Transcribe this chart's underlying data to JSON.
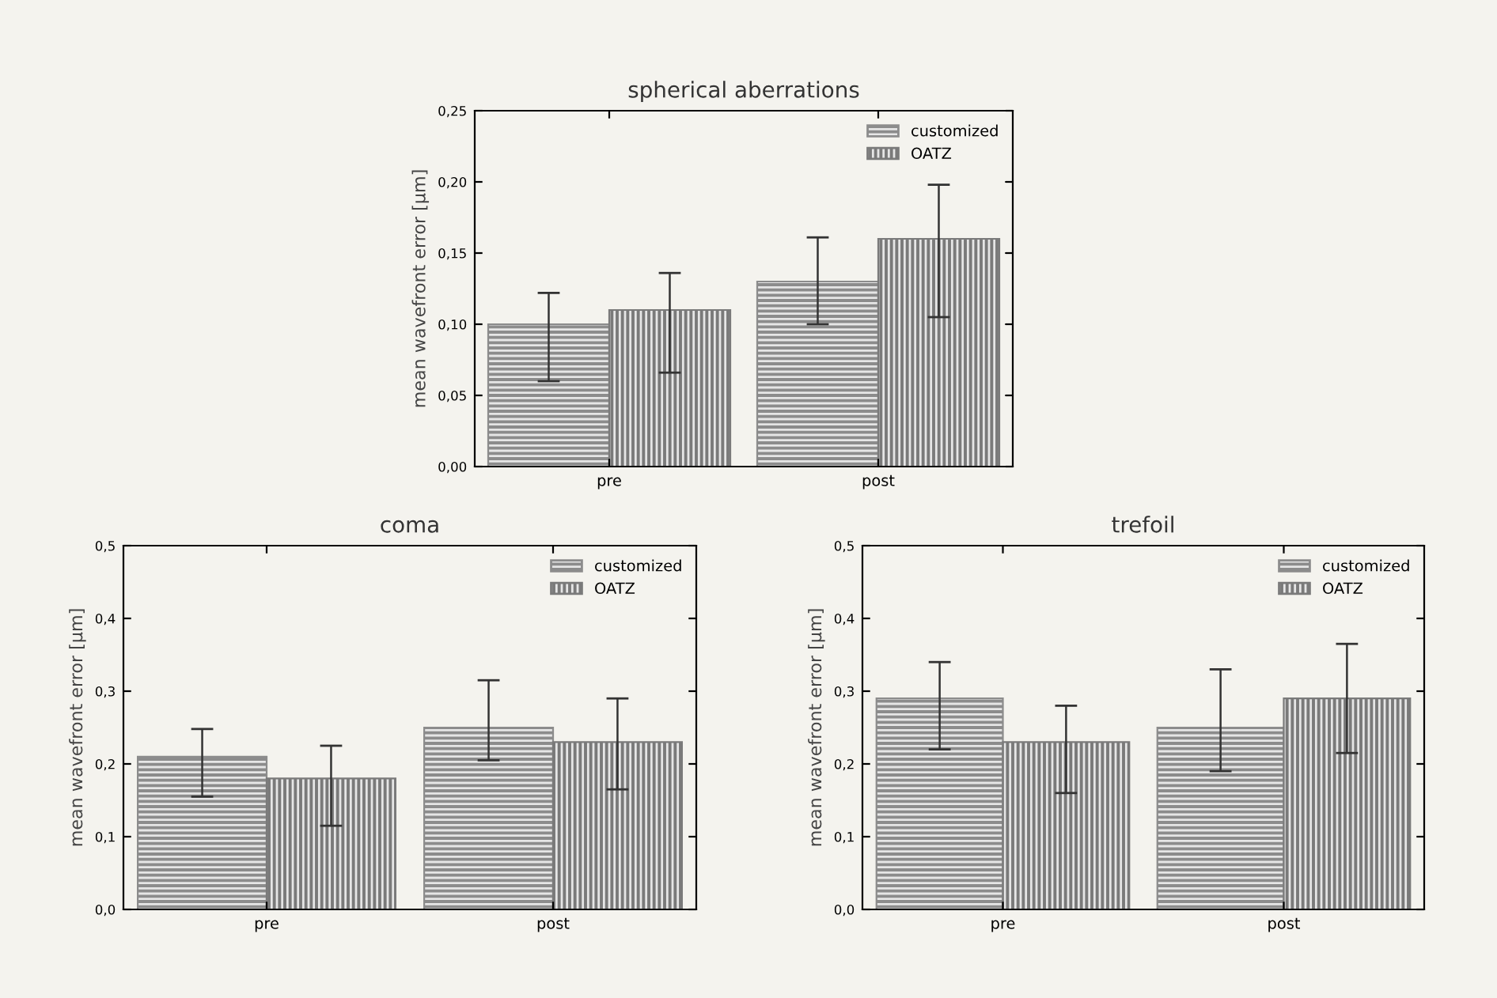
{
  "chart_data": [
    {
      "type": "bar",
      "title": "spherical aberrations",
      "ylabel": "mean wavefront error [µm]",
      "categories": [
        "pre",
        "post"
      ],
      "ylim": [
        0,
        0.25
      ],
      "yticks": [
        {
          "value": 0,
          "label": "0,00"
        },
        {
          "value": 0.05,
          "label": "0,05"
        },
        {
          "value": 0.1,
          "label": "0,10"
        },
        {
          "value": 0.15,
          "label": "0,15"
        },
        {
          "value": 0.2,
          "label": "0,20"
        },
        {
          "value": 0.25,
          "label": "0,25"
        }
      ],
      "legend": "top right",
      "series": [
        {
          "name": "customized",
          "color": "#8c8c8c",
          "values": [
            0.1,
            0.13
          ],
          "errors": [
            [
              0.06,
              0.122
            ],
            [
              0.1,
              0.161
            ]
          ]
        },
        {
          "name": "OATZ",
          "color": "#7a7a7a",
          "values": [
            0.11,
            0.16
          ],
          "errors": [
            [
              0.066,
              0.136
            ],
            [
              0.105,
              0.198
            ]
          ]
        }
      ]
    },
    {
      "type": "bar",
      "title": "coma",
      "ylabel": "mean wavefront error [µm]",
      "categories": [
        "pre",
        "post"
      ],
      "ylim": [
        0,
        0.5
      ],
      "yticks": [
        {
          "value": 0,
          "label": "0,0"
        },
        {
          "value": 0.1,
          "label": "0,1"
        },
        {
          "value": 0.2,
          "label": "0,2"
        },
        {
          "value": 0.3,
          "label": "0,3"
        },
        {
          "value": 0.4,
          "label": "0,4"
        },
        {
          "value": 0.5,
          "label": "0,5"
        }
      ],
      "legend": "top right",
      "series": [
        {
          "name": "customized",
          "color": "#8c8c8c",
          "values": [
            0.21,
            0.25
          ],
          "errors": [
            [
              0.155,
              0.248
            ],
            [
              0.205,
              0.315
            ]
          ]
        },
        {
          "name": "OATZ",
          "color": "#7a7a7a",
          "values": [
            0.18,
            0.23
          ],
          "errors": [
            [
              0.115,
              0.225
            ],
            [
              0.165,
              0.29
            ]
          ]
        }
      ]
    },
    {
      "type": "bar",
      "title": "trefoil",
      "ylabel": "mean wavefront error [µm]",
      "categories": [
        "pre",
        "post"
      ],
      "ylim": [
        0,
        0.5
      ],
      "yticks": [
        {
          "value": 0,
          "label": "0,0"
        },
        {
          "value": 0.1,
          "label": "0,1"
        },
        {
          "value": 0.2,
          "label": "0,2"
        },
        {
          "value": 0.3,
          "label": "0,3"
        },
        {
          "value": 0.4,
          "label": "0,4"
        },
        {
          "value": 0.5,
          "label": "0,5"
        }
      ],
      "legend": "top right",
      "series": [
        {
          "name": "customized",
          "color": "#8c8c8c",
          "values": [
            0.29,
            0.25
          ],
          "errors": [
            [
              0.22,
              0.34
            ],
            [
              0.19,
              0.33
            ]
          ]
        },
        {
          "name": "OATZ",
          "color": "#7a7a7a",
          "values": [
            0.23,
            0.29
          ],
          "errors": [
            [
              0.16,
              0.28
            ],
            [
              0.215,
              0.365
            ]
          ]
        }
      ]
    }
  ]
}
